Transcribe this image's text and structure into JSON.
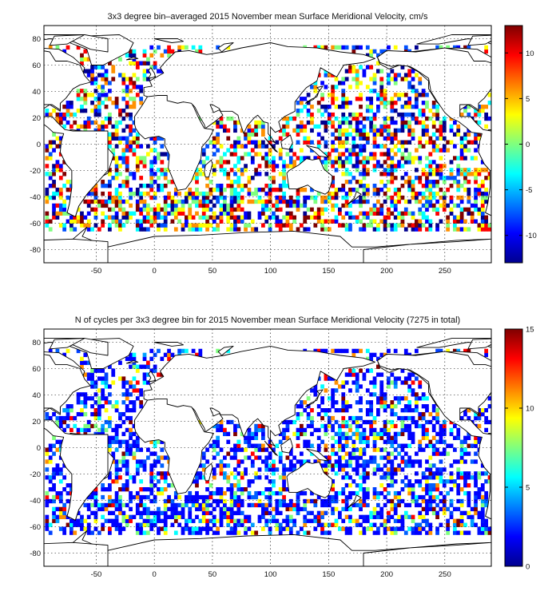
{
  "panels": [
    {
      "title": "3x3 degree bin–averaged 2015 November mean Surface Meridional Velocity, cm/s",
      "x_ticks": [
        "-50",
        "0",
        "50",
        "100",
        "150",
        "200",
        "250"
      ],
      "y_ticks": [
        "80",
        "60",
        "40",
        "20",
        "0",
        "-20",
        "-40",
        "-60",
        "-80"
      ],
      "colorbar_ticks": [
        "10",
        "5",
        "0",
        "-5",
        "-10"
      ],
      "colorbar_range": [
        -13,
        13
      ]
    },
    {
      "title": "N of cycles per 3x3 degree bin for 2015 November mean Surface Meridional Velocity (7275 in total)",
      "x_ticks": [
        "-50",
        "0",
        "50",
        "100",
        "150",
        "200",
        "250"
      ],
      "y_ticks": [
        "80",
        "60",
        "40",
        "20",
        "0",
        "-20",
        "-40",
        "-60",
        "-80"
      ],
      "colorbar_ticks": [
        "15",
        "10",
        "5",
        "0"
      ],
      "colorbar_range": [
        0,
        15
      ]
    }
  ],
  "map": {
    "lon_range": [
      -95,
      290
    ],
    "lat_range": [
      -90,
      90
    ],
    "bin_size_deg": 3,
    "colormap": "jet"
  }
}
